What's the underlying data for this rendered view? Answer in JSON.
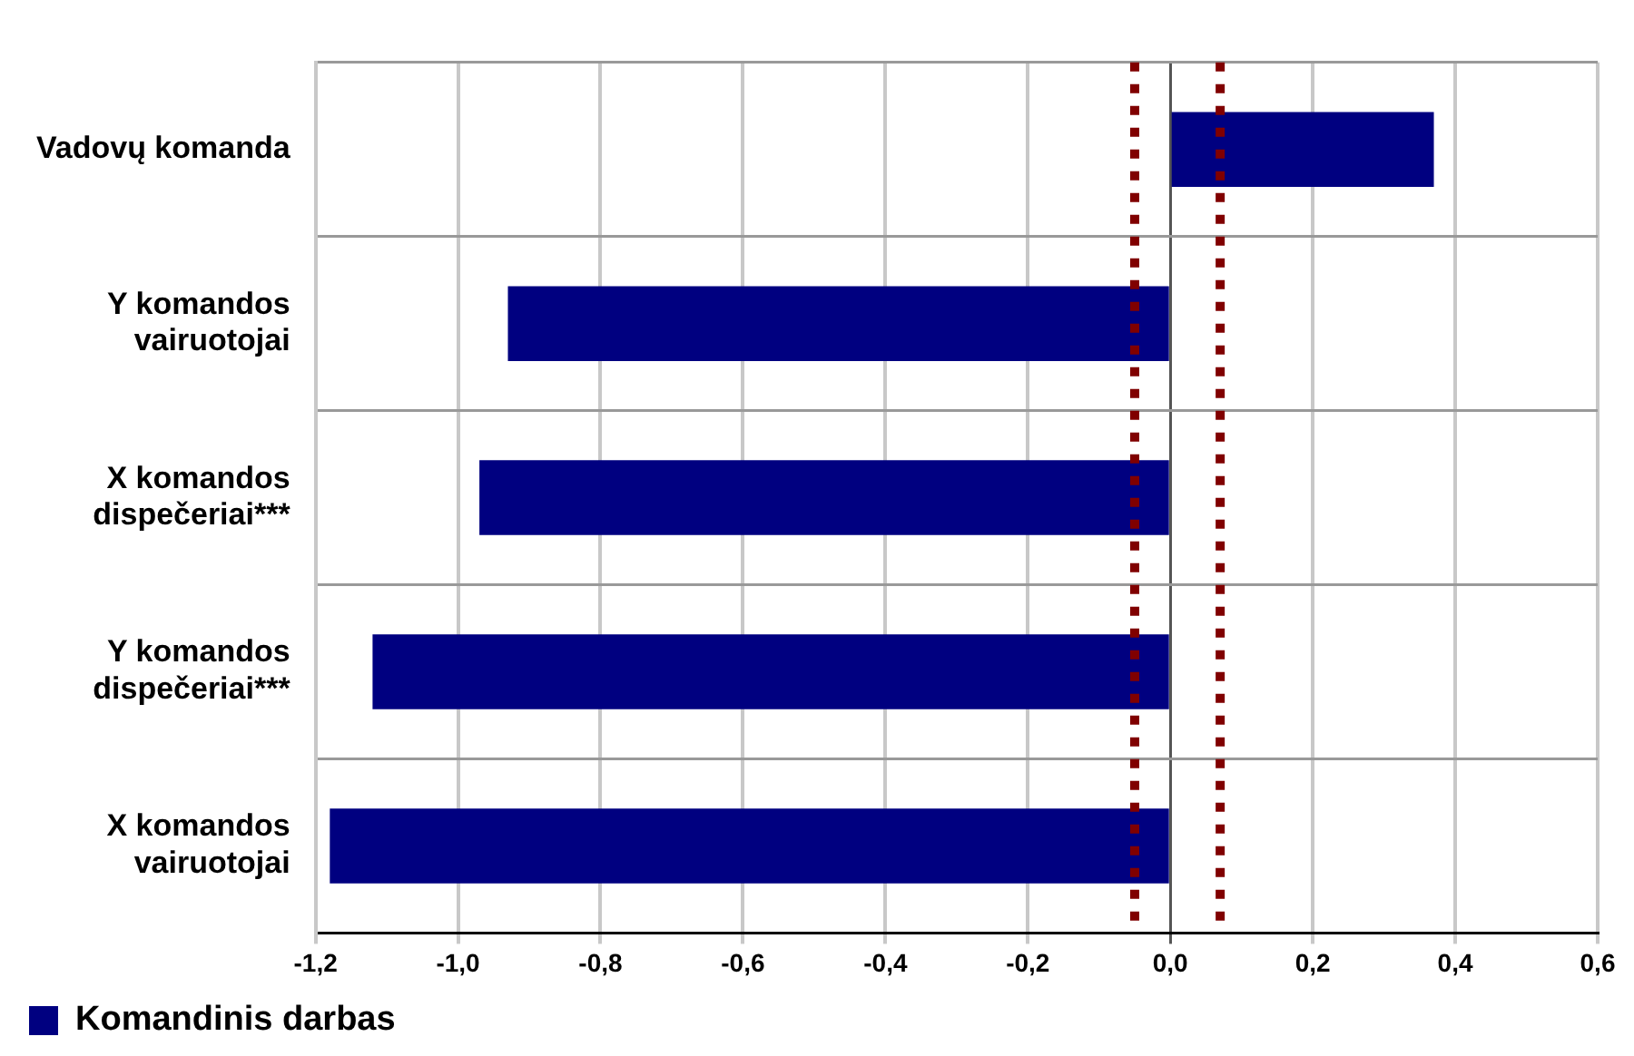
{
  "chart_data": {
    "type": "bar",
    "orientation": "horizontal",
    "categories": [
      "Vadovų komanda",
      "Y komandos vairuotojai",
      "X komandos dispečeriai***",
      "Y komandos dispečeriai***",
      "X komandos vairuotojai"
    ],
    "series": [
      {
        "name": "Komandinis darbas",
        "color": "#000080",
        "values": [
          0.37,
          -0.93,
          -0.97,
          -1.12,
          -1.18
        ]
      }
    ],
    "xlim": [
      -1.2,
      0.6
    ],
    "xticks": [
      {
        "value": -1.2,
        "label": "-1,2"
      },
      {
        "value": -1.0,
        "label": "-1,0"
      },
      {
        "value": -0.8,
        "label": "-0,8"
      },
      {
        "value": -0.6,
        "label": "-0,6"
      },
      {
        "value": -0.4,
        "label": "-0,4"
      },
      {
        "value": -0.2,
        "label": "-0,2"
      },
      {
        "value": 0,
        "label": "0,0"
      },
      {
        "value": 0.2,
        "label": "0,2"
      },
      {
        "value": 0.4,
        "label": "0,4"
      },
      {
        "value": 0.6,
        "label": "0,6"
      }
    ],
    "ref_lines": [
      {
        "axis": "x",
        "value": -0.05,
        "color": "#800000",
        "line_style": "dotted"
      },
      {
        "axis": "x",
        "value": 0.07,
        "color": "#800000",
        "line_style": "dotted"
      }
    ],
    "grid": true,
    "legend": "bottom left"
  }
}
